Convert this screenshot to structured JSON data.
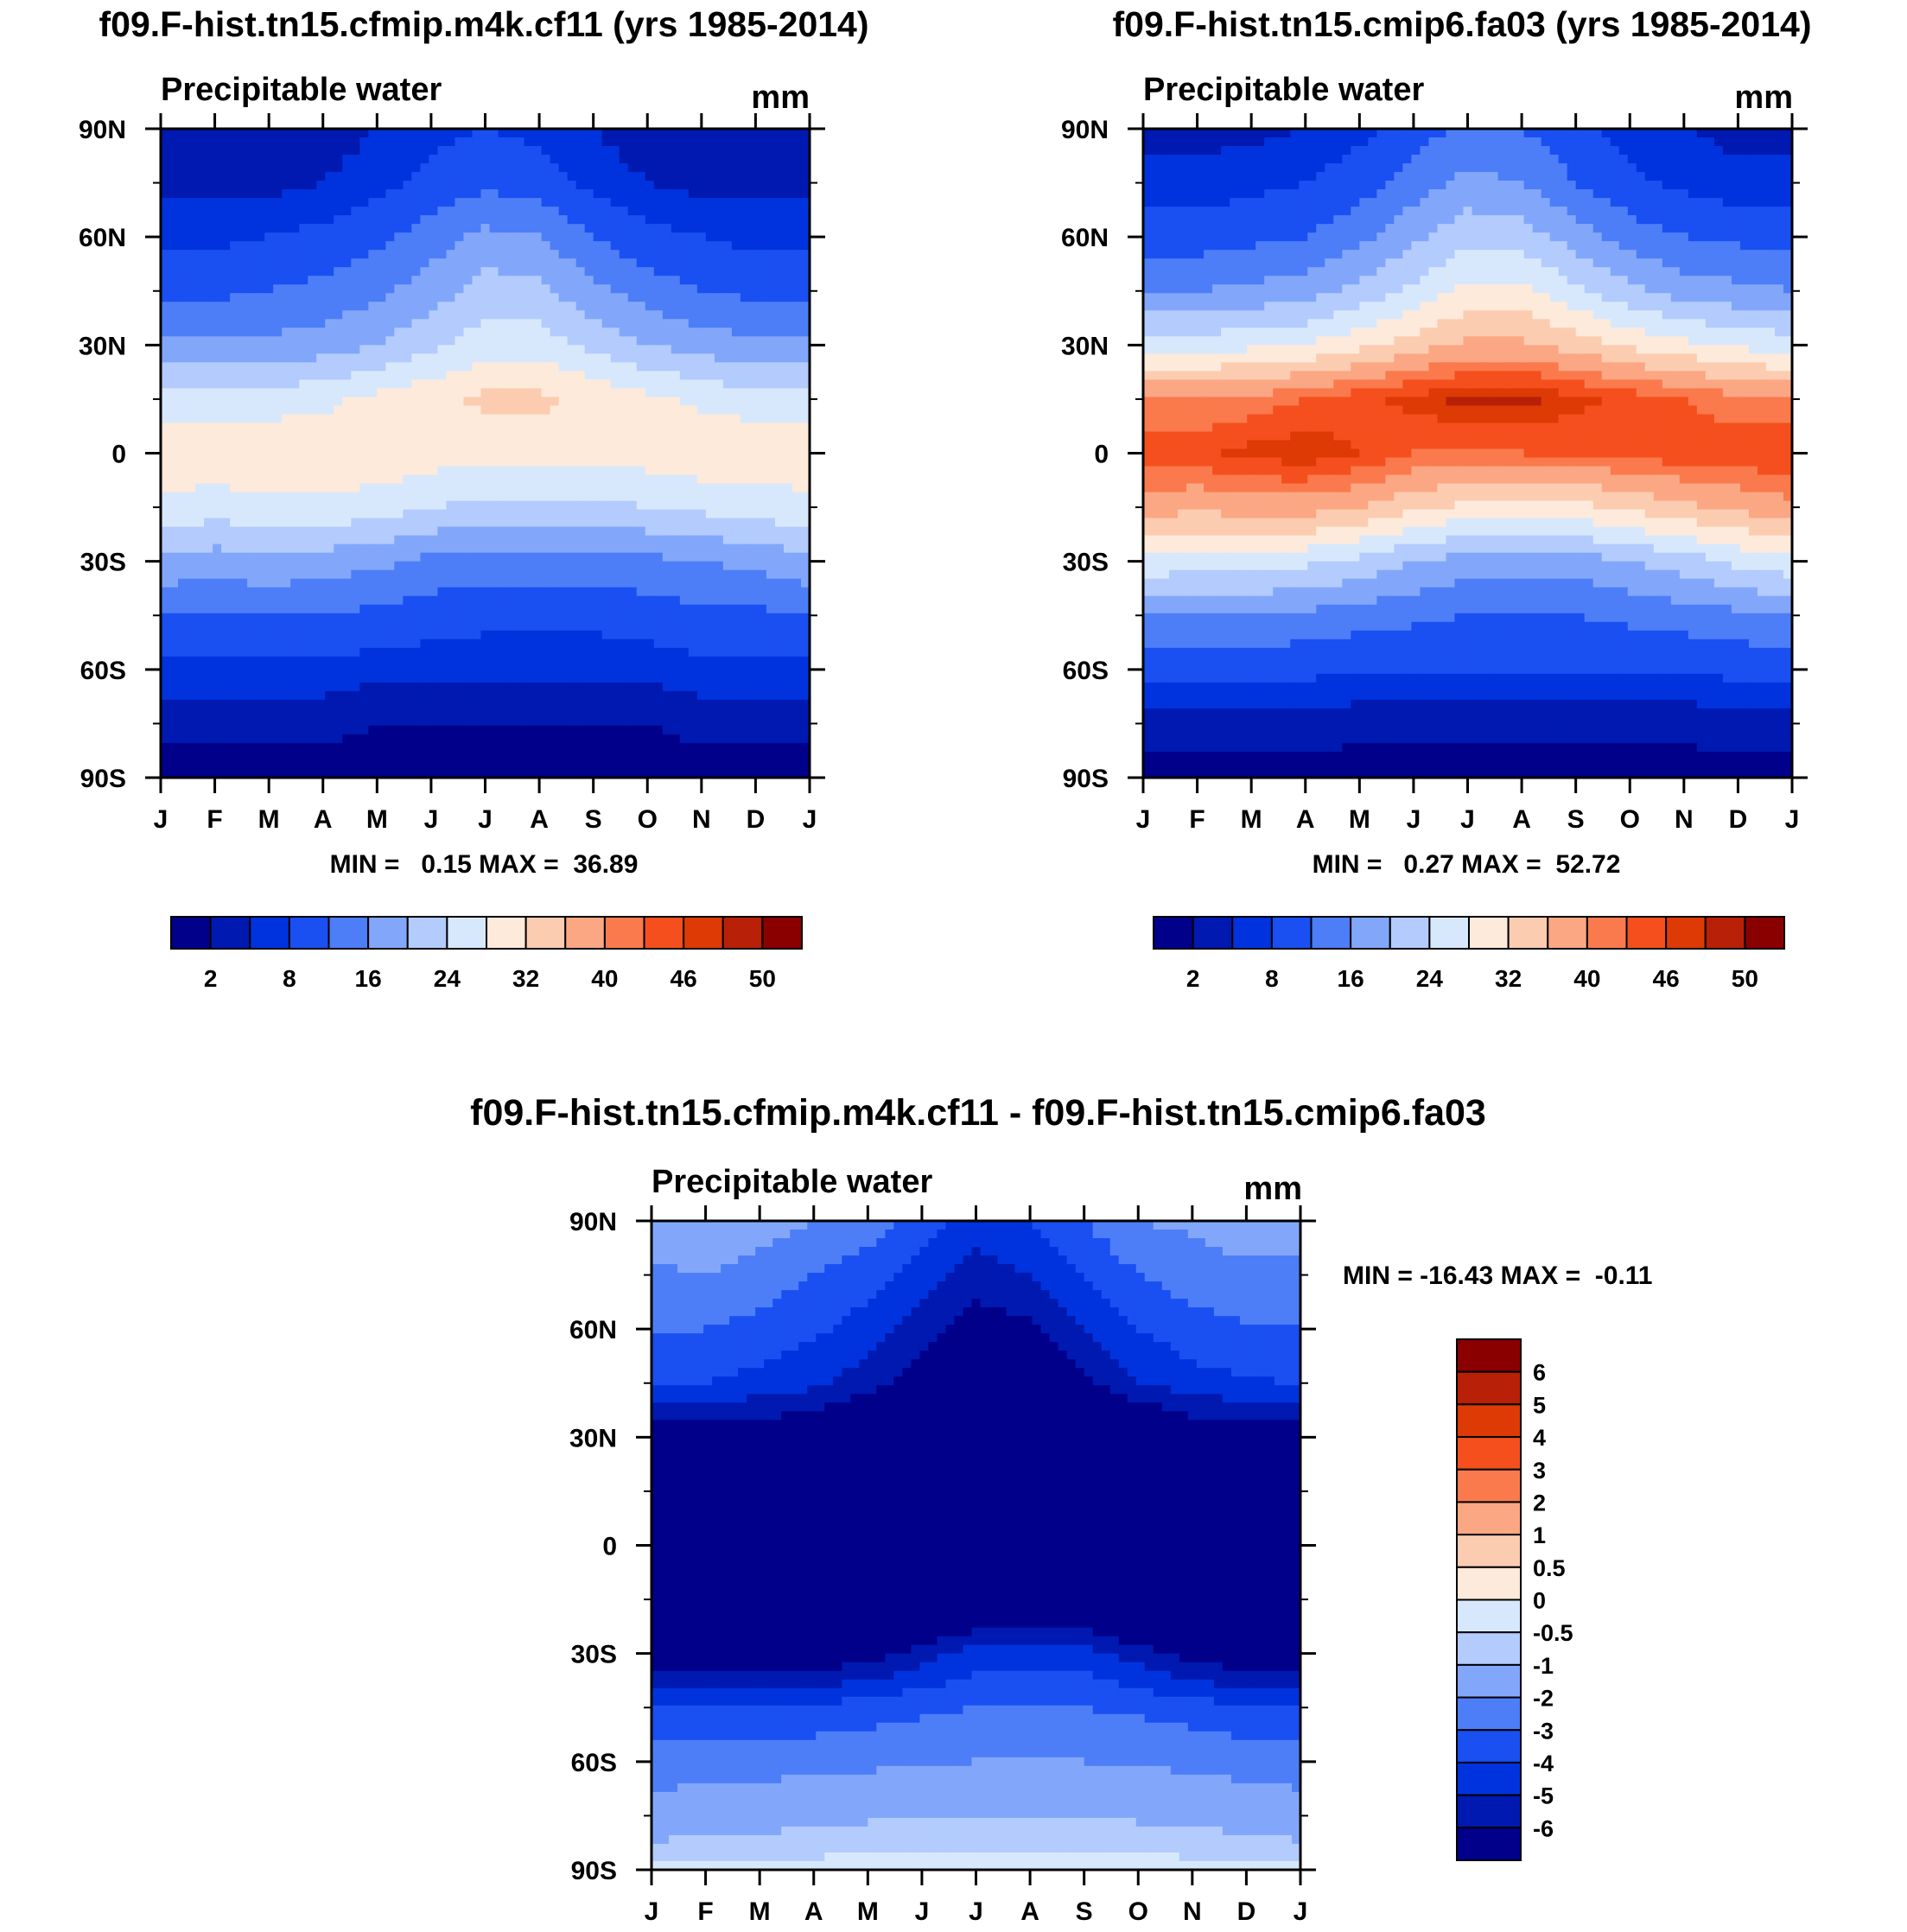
{
  "panels": [
    {
      "id": "top-left",
      "title": "f09.F-hist.tn15.cfmip.m4k.cf11 (yrs 1985-2014)",
      "variable": "Precipitable water",
      "units": "mm",
      "stats": "MIN =   0.15 MAX =  36.89",
      "colorbar_labels": [
        "2",
        "8",
        "16",
        "24",
        "32",
        "40",
        "46",
        "50"
      ]
    },
    {
      "id": "top-right",
      "title": "f09.F-hist.tn15.cmip6.fa03 (yrs 1985-2014)",
      "variable": "Precipitable water",
      "units": "mm",
      "stats": "MIN =   0.27 MAX =  52.72",
      "colorbar_labels": [
        "2",
        "8",
        "16",
        "24",
        "32",
        "40",
        "46",
        "50"
      ]
    },
    {
      "id": "bottom",
      "title": "f09.F-hist.tn15.cfmip.m4k.cf11 - f09.F-hist.tn15.cmip6.fa03",
      "variable": "Precipitable water",
      "units": "mm",
      "stats": "MIN = -16.43 MAX =  -0.11",
      "colorbar_labels": [
        "6",
        "5",
        "4",
        "3",
        "2",
        "1",
        "0.5",
        "0",
        "-0.5",
        "-1",
        "-2",
        "-3",
        "-4",
        "-5",
        "-6"
      ]
    }
  ],
  "axes": {
    "months": [
      "J",
      "F",
      "M",
      "A",
      "M",
      "J",
      "J",
      "A",
      "S",
      "O",
      "N",
      "D",
      "J"
    ],
    "lat_labels": [
      "90N",
      "60N",
      "30N",
      "0",
      "30S",
      "60S",
      "90S"
    ]
  },
  "colors": {
    "abs_scale": [
      "#00008b",
      "#0019b0",
      "#0033dd",
      "#1a4ff2",
      "#4d7ef7",
      "#82a7fa",
      "#b3cbfd",
      "#d8e8fc",
      "#fdeadb",
      "#fcccb1",
      "#fba784",
      "#fa7a4d",
      "#f54f1e",
      "#dd3a05",
      "#b82008",
      "#8a0000"
    ],
    "diff_scale": [
      "#8a0000",
      "#b82008",
      "#dd3a05",
      "#f54f1e",
      "#fa7a4d",
      "#fba784",
      "#fcccb1",
      "#fdeadb",
      "#d8e8fc",
      "#b3cbfd",
      "#82a7fa",
      "#4d7ef7",
      "#1a4ff2",
      "#0033dd",
      "#0019b0",
      "#00008b"
    ]
  },
  "chart_data": [
    {
      "type": "heatmap",
      "title": "f09.F-hist.tn15.cfmip.m4k.cf11 (yrs 1985-2014)",
      "subtitle": "Precipitable water",
      "units": "mm",
      "x": [
        "J",
        "F",
        "M",
        "A",
        "M",
        "J",
        "J",
        "A",
        "S",
        "O",
        "N",
        "D",
        "J"
      ],
      "y": [
        90,
        75,
        60,
        45,
        30,
        15,
        0,
        -15,
        -30,
        -45,
        -60,
        -75,
        -90
      ],
      "ylabel_ticks": [
        "90N",
        "60N",
        "30N",
        "0",
        "30S",
        "60S",
        "90S"
      ],
      "levels": [
        2,
        5,
        8,
        12,
        16,
        20,
        24,
        28,
        32,
        36,
        40,
        43,
        46,
        48,
        50
      ],
      "values": [
        [
          2,
          2,
          2,
          3,
          5,
          7,
          8,
          7,
          5,
          3,
          2,
          2,
          2
        ],
        [
          4,
          4,
          4,
          5,
          7,
          9,
          11,
          10,
          7,
          5,
          4,
          4,
          4
        ],
        [
          7,
          7,
          8,
          9,
          11,
          14,
          17,
          16,
          12,
          9,
          8,
          7,
          7
        ],
        [
          11,
          11,
          12,
          13,
          15,
          18,
          22,
          21,
          17,
          14,
          12,
          11,
          11
        ],
        [
          17,
          17,
          17,
          18,
          20,
          23,
          26,
          26,
          23,
          20,
          18,
          17,
          17
        ],
        [
          26,
          26,
          26,
          27,
          29,
          31,
          33,
          33,
          31,
          29,
          27,
          26,
          26
        ],
        [
          31,
          31,
          31,
          31,
          31,
          30,
          29,
          29,
          29,
          30,
          31,
          31,
          30
        ],
        [
          27,
          26,
          27,
          27,
          26,
          24,
          23,
          23,
          23,
          24,
          25,
          26,
          27
        ],
        [
          19,
          18,
          19,
          18,
          17,
          15,
          14,
          14,
          14,
          15,
          16,
          17,
          19
        ],
        [
          12,
          12,
          12,
          12,
          11,
          10,
          9,
          9,
          9,
          10,
          11,
          11,
          12
        ],
        [
          7,
          7,
          7,
          7,
          6,
          6,
          6,
          6,
          6,
          6,
          7,
          7,
          7
        ],
        [
          3,
          3,
          3,
          3,
          2,
          2,
          2,
          2,
          2,
          2,
          3,
          3,
          3
        ],
        [
          0.5,
          0.5,
          0.4,
          0.3,
          0.3,
          0.2,
          0.2,
          0.2,
          0.2,
          0.3,
          0.4,
          0.5,
          0.5
        ]
      ]
    },
    {
      "type": "heatmap",
      "title": "f09.F-hist.tn15.cmip6.fa03 (yrs 1985-2014)",
      "subtitle": "Precipitable water",
      "units": "mm",
      "x": [
        "J",
        "F",
        "M",
        "A",
        "M",
        "J",
        "J",
        "A",
        "S",
        "O",
        "N",
        "D",
        "J"
      ],
      "y": [
        90,
        75,
        60,
        45,
        30,
        15,
        0,
        -15,
        -30,
        -45,
        -60,
        -75,
        -90
      ],
      "ylabel_ticks": [
        "90N",
        "60N",
        "30N",
        "0",
        "30S",
        "60S",
        "90S"
      ],
      "levels": [
        2,
        5,
        8,
        12,
        16,
        20,
        24,
        28,
        32,
        36,
        40,
        43,
        46,
        48,
        50
      ],
      "values": [
        [
          4,
          4,
          4,
          5,
          7,
          10,
          13,
          12,
          9,
          6,
          5,
          4,
          4
        ],
        [
          6,
          6,
          7,
          8,
          10,
          14,
          17,
          16,
          12,
          9,
          7,
          6,
          6
        ],
        [
          10,
          10,
          11,
          12,
          15,
          19,
          23,
          22,
          18,
          14,
          12,
          11,
          10
        ],
        [
          16,
          16,
          17,
          18,
          21,
          25,
          29,
          29,
          25,
          21,
          18,
          17,
          16
        ],
        [
          26,
          26,
          27,
          28,
          31,
          34,
          37,
          37,
          34,
          31,
          29,
          27,
          26
        ],
        [
          40,
          40,
          41,
          43,
          45,
          47,
          49,
          49,
          47,
          45,
          43,
          41,
          40
        ],
        [
          45,
          45,
          47,
          48,
          46,
          43,
          42,
          43,
          43,
          44,
          45,
          45,
          46
        ],
        [
          38,
          37,
          38,
          38,
          36,
          33,
          31,
          31,
          31,
          33,
          35,
          37,
          39
        ],
        [
          27,
          26,
          26,
          25,
          23,
          20,
          18,
          18,
          18,
          20,
          22,
          25,
          27
        ],
        [
          16,
          16,
          16,
          15,
          14,
          13,
          12,
          12,
          12,
          13,
          14,
          15,
          16
        ],
        [
          9,
          9,
          9,
          9,
          8,
          8,
          8,
          8,
          8,
          8,
          8,
          9,
          9
        ],
        [
          4,
          4,
          4,
          4,
          3,
          3,
          3,
          3,
          3,
          3,
          3,
          4,
          4
        ],
        [
          0.6,
          0.6,
          0.5,
          0.4,
          0.4,
          0.3,
          0.3,
          0.3,
          0.3,
          0.4,
          0.5,
          0.6,
          0.6
        ]
      ]
    },
    {
      "type": "heatmap",
      "title": "f09.F-hist.tn15.cfmip.m4k.cf11 - f09.F-hist.tn15.cmip6.fa03",
      "subtitle": "Precipitable water",
      "units": "mm",
      "x": [
        "J",
        "F",
        "M",
        "A",
        "M",
        "J",
        "J",
        "A",
        "S",
        "O",
        "N",
        "D",
        "J"
      ],
      "y": [
        90,
        75,
        60,
        45,
        30,
        15,
        0,
        -15,
        -30,
        -45,
        -60,
        -75,
        -90
      ],
      "ylabel_ticks": [
        "90N",
        "60N",
        "30N",
        "0",
        "30S",
        "60S",
        "90S"
      ],
      "levels": [
        -6,
        -5,
        -4,
        -3,
        -2,
        -1,
        -0.5,
        0,
        0.5,
        1,
        2,
        3,
        4,
        5,
        6
      ],
      "values": [
        [
          -1.5,
          -1,
          -1.5,
          -2,
          -2.5,
          -3.5,
          -4.5,
          -4,
          -3,
          -2,
          -1.8,
          -1.5,
          -1.5
        ],
        [
          -2.2,
          -2,
          -2.5,
          -3,
          -3.5,
          -4.5,
          -5.5,
          -5,
          -4,
          -3,
          -2.5,
          -2.2,
          -2.2
        ],
        [
          -3,
          -3,
          -3.3,
          -3.8,
          -4.5,
          -5.5,
          -6.5,
          -6.2,
          -5,
          -4,
          -3.4,
          -3.1,
          -3
        ],
        [
          -4,
          -4,
          -4.3,
          -4.8,
          -5.5,
          -6.5,
          -7.5,
          -7.2,
          -6.2,
          -5,
          -4.4,
          -4.1,
          -4
        ],
        [
          -7,
          -7,
          -7,
          -7,
          -8,
          -9,
          -10,
          -10,
          -9,
          -8,
          -7,
          -7,
          -7
        ],
        [
          -12,
          -12,
          -12,
          -12,
          -13,
          -14,
          -15,
          -15,
          -14,
          -13,
          -12,
          -12,
          -12
        ],
        [
          -13,
          -13,
          -14,
          -15,
          -14,
          -13,
          -13,
          -13,
          -13,
          -13,
          -13,
          -13,
          -14
        ],
        [
          -10,
          -10,
          -10,
          -10,
          -10,
          -9,
          -8,
          -8,
          -8,
          -9,
          -9,
          -10,
          -10
        ],
        [
          -7,
          -7,
          -7,
          -7,
          -6.5,
          -5.5,
          -4.5,
          -4.5,
          -4.5,
          -5.5,
          -6.5,
          -7,
          -7
        ],
        [
          -4,
          -4,
          -4,
          -3.8,
          -3.5,
          -3.2,
          -3,
          -3,
          -3,
          -3.2,
          -3.5,
          -3.8,
          -4
        ],
        [
          -2.5,
          -2.5,
          -2.4,
          -2.3,
          -2.2,
          -2.1,
          -2,
          -2,
          -2,
          -2.1,
          -2.2,
          -2.4,
          -2.5
        ],
        [
          -1.5,
          -1.4,
          -1.3,
          -1.2,
          -1.1,
          -1,
          -1,
          -1,
          -1,
          -1.1,
          -1.2,
          -1.3,
          -1.5
        ],
        [
          -0.4,
          -0.4,
          -0.35,
          -0.3,
          -0.25,
          -0.2,
          -0.2,
          -0.2,
          -0.2,
          -0.25,
          -0.3,
          -0.35,
          -0.4
        ]
      ]
    }
  ]
}
